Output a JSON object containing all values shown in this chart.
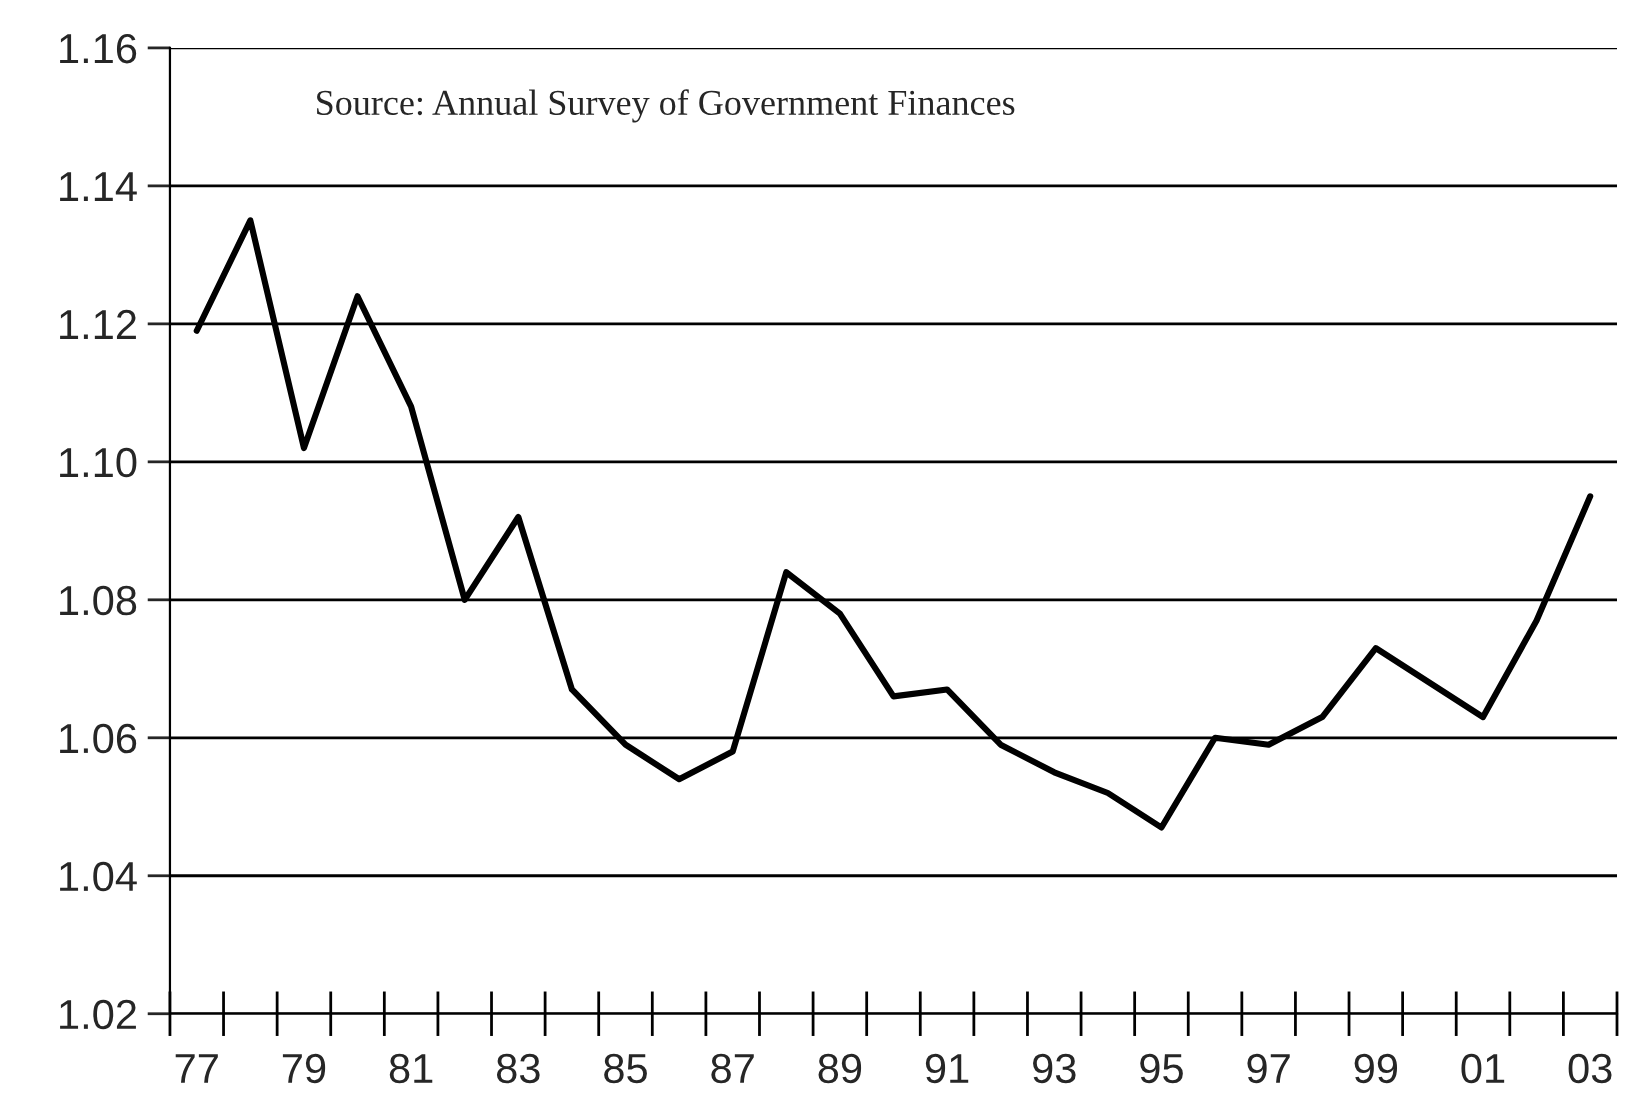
{
  "chart_data": {
    "type": "line",
    "categories": [
      "77",
      null,
      "79",
      null,
      "81",
      null,
      "83",
      null,
      "85",
      null,
      "87",
      null,
      "89",
      null,
      "91",
      null,
      "93",
      null,
      "95",
      null,
      "97",
      null,
      "99",
      null,
      "01",
      null,
      "03"
    ],
    "series": [
      {
        "color": "#000000",
        "values": [
          1.119,
          1.135,
          1.102,
          1.124,
          1.108,
          1.08,
          1.092,
          1.067,
          1.059,
          1.054,
          1.058,
          1.084,
          1.078,
          1.066,
          1.067,
          1.059,
          1.055,
          1.052,
          1.047,
          1.06,
          1.059,
          1.063,
          1.073,
          1.068,
          1.063,
          1.077,
          1.095
        ]
      }
    ],
    "ylim": [
      1.02,
      1.16
    ],
    "yticks": [
      {
        "value": 1.02,
        "label": "1.02"
      },
      {
        "value": 1.04,
        "label": "1.04"
      },
      {
        "value": 1.06,
        "label": "1.06"
      },
      {
        "value": 1.08,
        "label": "1.08"
      },
      {
        "value": 1.1,
        "label": "1.10"
      },
      {
        "value": 1.12,
        "label": "1.12"
      },
      {
        "value": 1.14,
        "label": "1.14"
      },
      {
        "value": 1.16,
        "label": "1.16"
      }
    ],
    "grid": "y",
    "marker": "none",
    "line_style": "solid",
    "legend": false,
    "annotations": [
      "Source: Annual Survey of Government Finances"
    ]
  }
}
